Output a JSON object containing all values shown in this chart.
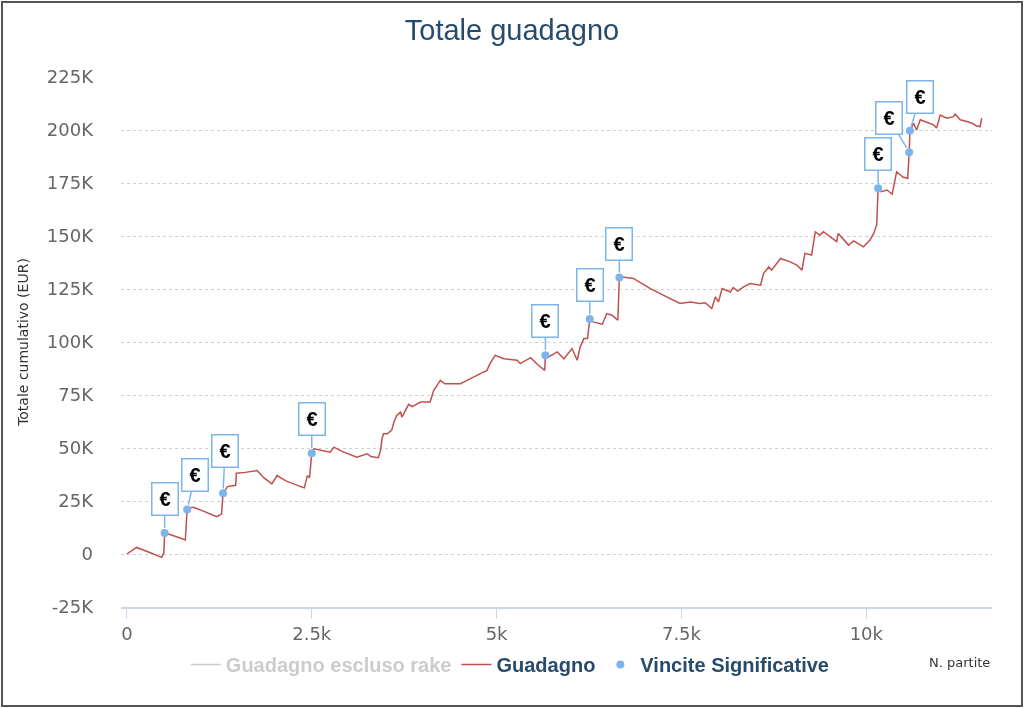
{
  "chart_data": {
    "type": "line",
    "title": "Totale guadagno",
    "xlabel": "N. partite",
    "ylabel": "Totale cumulativo (EUR)",
    "xlim": [
      -80,
      11700
    ],
    "xticks": [
      0,
      {
        "value": 2500,
        "label": "2.5k"
      },
      {
        "value": 5000,
        "label": "5k"
      },
      {
        "value": 7500,
        "label": "7.5k"
      },
      {
        "value": 10000,
        "label": "10k"
      }
    ],
    "ylim": [
      -25000,
      225000
    ],
    "yticks": [
      {
        "value": -25000,
        "label": "-25K"
      },
      0,
      {
        "value": 25000,
        "label": "25K"
      },
      {
        "value": 50000,
        "label": "50K"
      },
      {
        "value": 75000,
        "label": "75K"
      },
      {
        "value": 100000,
        "label": "100K"
      },
      {
        "value": 125000,
        "label": "125K"
      },
      {
        "value": 150000,
        "label": "150K"
      },
      {
        "value": 175000,
        "label": "175K"
      },
      {
        "value": 200000,
        "label": "200K"
      },
      {
        "value": 225000,
        "label": "225K"
      }
    ],
    "grid": "y",
    "legend": "bottom",
    "line_style": "solid",
    "series": [
      {
        "name": "Guadagno escluso rake",
        "color": "#cccccc"
      },
      {
        "name": "Guadagno",
        "color": "#c0504d",
        "x": [
          0,
          130,
          300,
          470,
          500,
          510,
          540,
          700,
          790,
          815,
          850,
          900,
          1050,
          1150,
          1220,
          1280,
          1300,
          1360,
          1470,
          1480,
          1600,
          1760,
          1850,
          1960,
          2030,
          2150,
          2350,
          2400,
          2440,
          2470,
          2500,
          2530,
          2750,
          2800,
          2900,
          3110,
          3250,
          3300,
          3400,
          3430,
          3450,
          3470,
          3520,
          3580,
          3610,
          3650,
          3700,
          3720,
          3810,
          3860,
          3970,
          4100,
          4150,
          4240,
          4300,
          4510,
          4600,
          4780,
          4870,
          4910,
          4980,
          5100,
          5280,
          5320,
          5460,
          5550,
          5650,
          5660,
          5700,
          5820,
          5910,
          6020,
          6090,
          6130,
          6180,
          6230,
          6260,
          6300,
          6430,
          6490,
          6560,
          6640,
          6660,
          6700,
          6850,
          7080,
          7300,
          7480,
          7620,
          7750,
          7820,
          7910,
          7960,
          8000,
          8050,
          8160,
          8200,
          8260,
          8340,
          8430,
          8570,
          8610,
          8680,
          8720,
          8840,
          8970,
          9060,
          9130,
          9170,
          9260,
          9310,
          9370,
          9420,
          9600,
          9620,
          9760,
          9830,
          9960,
          10050,
          10100,
          10140,
          10160,
          10200,
          10280,
          10350,
          10410,
          10500,
          10560,
          10580,
          10590,
          10640,
          10680,
          10730,
          10790,
          10910,
          10950,
          11000,
          11090,
          11180,
          11200,
          11270,
          11360,
          11430,
          11490,
          11540,
          11560
        ],
        "values": [
          0,
          3100,
          800,
          -1600,
          500,
          9900,
          9700,
          7800,
          6600,
          21000,
          21700,
          22000,
          20000,
          18500,
          17600,
          18900,
          28600,
          31800,
          32400,
          38100,
          38500,
          39400,
          36000,
          33100,
          37000,
          34500,
          31800,
          31200,
          37000,
          36000,
          47500,
          49600,
          48000,
          50400,
          48500,
          45700,
          47300,
          46000,
          45400,
          48800,
          54300,
          56700,
          56700,
          58300,
          62000,
          65400,
          66900,
          64600,
          70600,
          69500,
          71700,
          71700,
          77200,
          81900,
          80300,
          80300,
          81900,
          85100,
          86600,
          89800,
          93700,
          92100,
          91400,
          89800,
          92600,
          89500,
          86600,
          93700,
          92900,
          95300,
          92100,
          96900,
          91400,
          97600,
          101600,
          101600,
          110900,
          109500,
          108400,
          113400,
          112600,
          110300,
          130400,
          130700,
          130000,
          125200,
          121300,
          118200,
          118900,
          118200,
          118500,
          115800,
          121300,
          118900,
          125200,
          123600,
          125700,
          124000,
          126000,
          127600,
          126800,
          132300,
          135400,
          133900,
          139400,
          137800,
          136300,
          133900,
          141800,
          141000,
          152000,
          150400,
          152000,
          147300,
          151200,
          145700,
          147700,
          144900,
          148100,
          151200,
          155200,
          172500,
          170900,
          171700,
          169700,
          180300,
          177700,
          177200,
          189500,
          199600,
          203200,
          200000,
          204800,
          204000,
          202400,
          200900,
          207100,
          205600,
          206300,
          207500,
          204800,
          204000,
          203200,
          201900,
          201600,
          205600
        ]
      },
      {
        "name": "Vincite Significative",
        "type": "scatter",
        "marker": "circle",
        "color": "#7cb5ec",
        "x": [
          510,
          815,
          1300,
          2500,
          5660,
          6260,
          6660,
          10160,
          10580,
          10590
        ],
        "values": [
          9900,
          21000,
          28600,
          47500,
          93700,
          110900,
          130400,
          172500,
          189500,
          199600
        ]
      }
    ],
    "annotations": [
      {
        "text": "€",
        "x": 510,
        "y": 9900
      },
      {
        "text": "€",
        "x": 815,
        "y": 21000
      },
      {
        "text": "€",
        "x": 1300,
        "y": 28600
      },
      {
        "text": "€",
        "x": 2500,
        "y": 47500
      },
      {
        "text": "€",
        "x": 5660,
        "y": 93700
      },
      {
        "text": "€",
        "x": 6260,
        "y": 110900
      },
      {
        "text": "€",
        "x": 6660,
        "y": 130400
      },
      {
        "text": "€",
        "x": 10160,
        "y": 172500
      },
      {
        "text": "€",
        "x": 10580,
        "y": 189500
      },
      {
        "text": "€",
        "x": 10590,
        "y": 199600
      }
    ]
  }
}
